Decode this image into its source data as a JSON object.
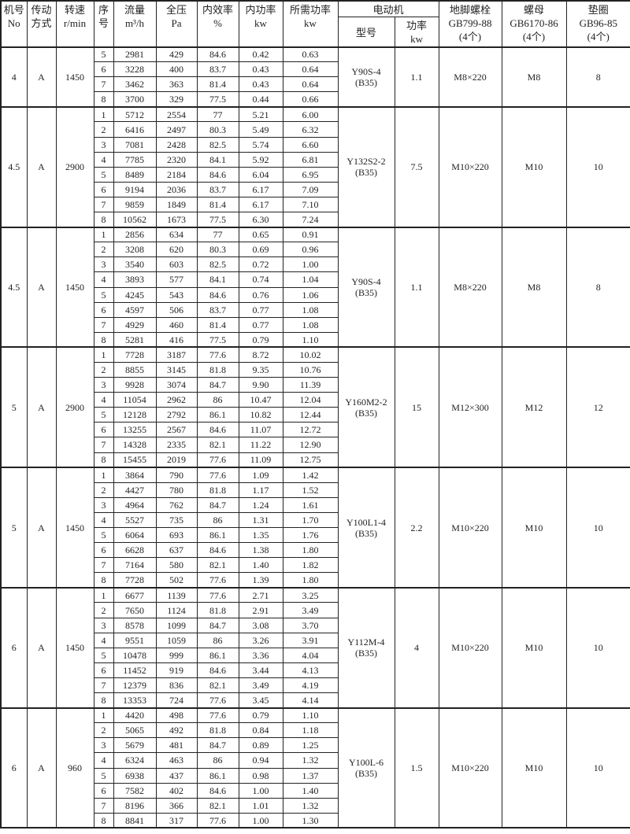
{
  "header": {
    "no": [
      "机号",
      "No"
    ],
    "drive": [
      "传动",
      "方式"
    ],
    "speed": [
      "转速",
      "r/min"
    ],
    "seq": [
      "序",
      "号"
    ],
    "flow": [
      "流量",
      "m³/h"
    ],
    "pressure": [
      "全压",
      "Pa"
    ],
    "efficiency": [
      "内效率",
      "%"
    ],
    "inner_power": [
      "内功率",
      "kw"
    ],
    "required_power": [
      "所需功率",
      "kw"
    ],
    "motor": "电动机",
    "motor_model": "型号",
    "motor_power": [
      "功率",
      "kw"
    ],
    "bolt": [
      "地脚螺栓",
      "GB799-88",
      "(4个)"
    ],
    "nut": [
      "螺母",
      "GB6170-86",
      "(4个)"
    ],
    "washer": [
      "垫圈",
      "GB96-85",
      "(4个)"
    ]
  },
  "groups": [
    {
      "no": "4",
      "drive": "A",
      "speed": "1450",
      "motor_model": [
        "Y90S-4",
        "(B35)"
      ],
      "motor_power": "1.1",
      "bolt": "M8×220",
      "nut": "M8",
      "washer": "8",
      "rows": [
        [
          "5",
          "2981",
          "429",
          "84.6",
          "0.42",
          "0.63"
        ],
        [
          "6",
          "3228",
          "400",
          "83.7",
          "0.43",
          "0.64"
        ],
        [
          "7",
          "3462",
          "363",
          "81.4",
          "0.43",
          "0.64"
        ],
        [
          "8",
          "3700",
          "329",
          "77.5",
          "0.44",
          "0.66"
        ]
      ]
    },
    {
      "no": "4.5",
      "drive": "A",
      "speed": "2900",
      "motor_model": [
        "Y132S2-2",
        "(B35)"
      ],
      "motor_power": "7.5",
      "bolt": "M10×220",
      "nut": "M10",
      "washer": "10",
      "rows": [
        [
          "1",
          "5712",
          "2554",
          "77",
          "5.21",
          "6.00"
        ],
        [
          "2",
          "6416",
          "2497",
          "80.3",
          "5.49",
          "6.32"
        ],
        [
          "3",
          "7081",
          "2428",
          "82.5",
          "5.74",
          "6.60"
        ],
        [
          "4",
          "7785",
          "2320",
          "84.1",
          "5.92",
          "6.81"
        ],
        [
          "5",
          "8489",
          "2184",
          "84.6",
          "6.04",
          "6.95"
        ],
        [
          "6",
          "9194",
          "2036",
          "83.7",
          "6.17",
          "7.09"
        ],
        [
          "7",
          "9859",
          "1849",
          "81.4",
          "6.17",
          "7.10"
        ],
        [
          "8",
          "10562",
          "1673",
          "77.5",
          "6.30",
          "7.24"
        ]
      ]
    },
    {
      "no": "4.5",
      "drive": "A",
      "speed": "1450",
      "motor_model": [
        "Y90S-4",
        "(B35)"
      ],
      "motor_power": "1.1",
      "bolt": "M8×220",
      "nut": "M8",
      "washer": "8",
      "rows": [
        [
          "1",
          "2856",
          "634",
          "77",
          "0.65",
          "0.91"
        ],
        [
          "2",
          "3208",
          "620",
          "80.3",
          "0.69",
          "0.96"
        ],
        [
          "3",
          "3540",
          "603",
          "82.5",
          "0.72",
          "1.00"
        ],
        [
          "4",
          "3893",
          "577",
          "84.1",
          "0.74",
          "1.04"
        ],
        [
          "5",
          "4245",
          "543",
          "84.6",
          "0.76",
          "1.06"
        ],
        [
          "6",
          "4597",
          "506",
          "83.7",
          "0.77",
          "1.08"
        ],
        [
          "7",
          "4929",
          "460",
          "81.4",
          "0.77",
          "1.08"
        ],
        [
          "8",
          "5281",
          "416",
          "77.5",
          "0.79",
          "1.10"
        ]
      ]
    },
    {
      "no": "5",
      "drive": "A",
      "speed": "2900",
      "motor_model": [
        "Y160M2-2",
        "(B35)"
      ],
      "motor_power": "15",
      "bolt": "M12×300",
      "nut": "M12",
      "washer": "12",
      "rows": [
        [
          "1",
          "7728",
          "3187",
          "77.6",
          "8.72",
          "10.02"
        ],
        [
          "2",
          "8855",
          "3145",
          "81.8",
          "9.35",
          "10.76"
        ],
        [
          "3",
          "9928",
          "3074",
          "84.7",
          "9.90",
          "11.39"
        ],
        [
          "4",
          "11054",
          "2962",
          "86",
          "10.47",
          "12.04"
        ],
        [
          "5",
          "12128",
          "2792",
          "86.1",
          "10.82",
          "12.44"
        ],
        [
          "6",
          "13255",
          "2567",
          "84.6",
          "11.07",
          "12.72"
        ],
        [
          "7",
          "14328",
          "2335",
          "82.1",
          "11.22",
          "12.90"
        ],
        [
          "8",
          "15455",
          "2019",
          "77.6",
          "11.09",
          "12.75"
        ]
      ]
    },
    {
      "no": "5",
      "drive": "A",
      "speed": "1450",
      "motor_model": [
        "Y100L1-4",
        "(B35)"
      ],
      "motor_power": "2.2",
      "bolt": "M10×220",
      "nut": "M10",
      "washer": "10",
      "rows": [
        [
          "1",
          "3864",
          "790",
          "77.6",
          "1.09",
          "1.42"
        ],
        [
          "2",
          "4427",
          "780",
          "81.8",
          "1.17",
          "1.52"
        ],
        [
          "3",
          "4964",
          "762",
          "84.7",
          "1.24",
          "1.61"
        ],
        [
          "4",
          "5527",
          "735",
          "86",
          "1.31",
          "1.70"
        ],
        [
          "5",
          "6064",
          "693",
          "86.1",
          "1.35",
          "1.76"
        ],
        [
          "6",
          "6628",
          "637",
          "84.6",
          "1.38",
          "1.80"
        ],
        [
          "7",
          "7164",
          "580",
          "82.1",
          "1.40",
          "1.82"
        ],
        [
          "8",
          "7728",
          "502",
          "77.6",
          "1.39",
          "1.80"
        ]
      ]
    },
    {
      "no": "6",
      "drive": "A",
      "speed": "1450",
      "motor_model": [
        "Y112M-4",
        "(B35)"
      ],
      "motor_power": "4",
      "bolt": "M10×220",
      "nut": "M10",
      "washer": "10",
      "rows": [
        [
          "1",
          "6677",
          "1139",
          "77.6",
          "2.71",
          "3.25"
        ],
        [
          "2",
          "7650",
          "1124",
          "81.8",
          "2.91",
          "3.49"
        ],
        [
          "3",
          "8578",
          "1099",
          "84.7",
          "3.08",
          "3.70"
        ],
        [
          "4",
          "9551",
          "1059",
          "86",
          "3.26",
          "3.91"
        ],
        [
          "5",
          "10478",
          "999",
          "86.1",
          "3.36",
          "4.04"
        ],
        [
          "6",
          "11452",
          "919",
          "84.6",
          "3.44",
          "4.13"
        ],
        [
          "7",
          "12379",
          "836",
          "82.1",
          "3.49",
          "4.19"
        ],
        [
          "8",
          "13353",
          "724",
          "77.6",
          "3.45",
          "4.14"
        ]
      ]
    },
    {
      "no": "6",
      "drive": "A",
      "speed": "960",
      "motor_model": [
        "Y100L-6",
        "(B35)"
      ],
      "motor_power": "1.5",
      "bolt": "M10×220",
      "nut": "M10",
      "washer": "10",
      "rows": [
        [
          "1",
          "4420",
          "498",
          "77.6",
          "0.79",
          "1.10"
        ],
        [
          "2",
          "5065",
          "492",
          "81.8",
          "0.84",
          "1.18"
        ],
        [
          "3",
          "5679",
          "481",
          "84.7",
          "0.89",
          "1.25"
        ],
        [
          "4",
          "6324",
          "463",
          "86",
          "0.94",
          "1.32"
        ],
        [
          "5",
          "6938",
          "437",
          "86.1",
          "0.98",
          "1.37"
        ],
        [
          "6",
          "7582",
          "402",
          "84.6",
          "1.00",
          "1.40"
        ],
        [
          "7",
          "8196",
          "366",
          "82.1",
          "1.01",
          "1.32"
        ],
        [
          "8",
          "8841",
          "317",
          "77.6",
          "1.00",
          "1.30"
        ]
      ]
    }
  ]
}
